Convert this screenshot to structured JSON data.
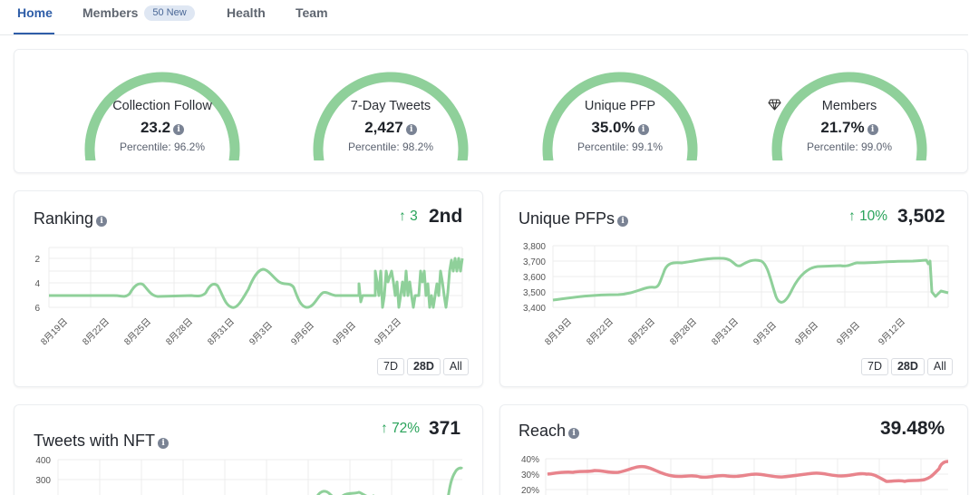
{
  "tabs": [
    {
      "label": "Home",
      "active": true
    },
    {
      "label": "Members",
      "badge": "50 New"
    },
    {
      "label": "Health"
    },
    {
      "label": "Team"
    }
  ],
  "gauges": [
    {
      "title": "Collection Follow",
      "value": "23.2",
      "percentile": "Percentile: 96.2%",
      "fill": 0.962
    },
    {
      "title": "7-Day Tweets",
      "value": "2,427",
      "percentile": "Percentile: 98.2%",
      "fill": 0.982
    },
    {
      "title": "Unique PFP",
      "value": "35.0%",
      "percentile": "Percentile: 99.1%",
      "fill": 0.991
    },
    {
      "title": "Members",
      "value": "21.7%",
      "percentile": "Percentile: 99.0%",
      "fill": 0.99,
      "icon": "diamond-icon"
    }
  ],
  "ranking": {
    "title": "Ranking",
    "delta": "3",
    "value": "2nd"
  },
  "unique_pfps": {
    "title": "Unique PFPs",
    "delta": "10%",
    "value": "3,502"
  },
  "tweets_nft": {
    "title": "Tweets with NFT",
    "delta": "72%",
    "value": "371"
  },
  "reach": {
    "title": "Reach",
    "value": "39.48%"
  },
  "range_buttons": [
    "7D",
    "28D",
    "All"
  ],
  "colors": {
    "accent": "#2f5ea8",
    "gauge": "#8fd09a",
    "line_green": "#8fd09a",
    "line_red": "#e8848c",
    "up": "#29a35a"
  },
  "chart_data": [
    {
      "type": "line",
      "title": "Ranking",
      "x": [
        "8月19日",
        "8月22日",
        "8月25日",
        "8月28日",
        "8月31日",
        "9月3日",
        "9月6日",
        "9月9日",
        "9月12日"
      ],
      "yticks": [
        "2",
        "4",
        "6"
      ],
      "ylim": [
        6.3,
        1.5
      ],
      "inverted": true
    },
    {
      "type": "line",
      "title": "Unique PFPs",
      "x": [
        "8月19日",
        "8月22日",
        "8月25日",
        "8月28日",
        "8月31日",
        "9月3日",
        "9月6日",
        "9月9日",
        "9月12日"
      ],
      "yticks": [
        "3,800",
        "3,700",
        "3,600",
        "3,500",
        "3,400"
      ],
      "ylim": [
        3400,
        3800
      ]
    },
    {
      "type": "line",
      "title": "Tweets with NFT",
      "yticks": [
        "400",
        "300"
      ]
    },
    {
      "type": "line",
      "title": "Reach",
      "yticks": [
        "40%",
        "30%",
        "20%"
      ]
    }
  ]
}
